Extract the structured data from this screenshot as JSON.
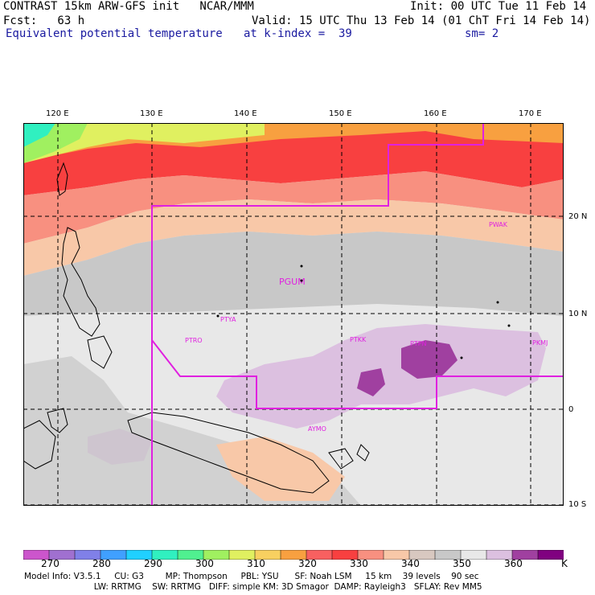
{
  "header": {
    "line1_left": "CONTRAST 15km ARW-GFS init   NCAR/MMM",
    "line1_right": "Init: 00 UTC Tue 11 Feb 14",
    "line2_left": "Fcst:   63 h",
    "line2_right": "Valid: 15 UTC Thu 13 Feb 14 (01 ChT Fri 14 Feb 14)",
    "field_name": "Equivalent potential temperature",
    "level_text": "at k-index =  39",
    "smooth_text": "sm= 2"
  },
  "map": {
    "lon_labels": [
      "120 E",
      "130 E",
      "140 E",
      "150 E",
      "160 E",
      "170 E"
    ],
    "lat_labels": [
      "20 N",
      "10 N",
      "0",
      "10 S"
    ],
    "stations": [
      "PGUM",
      "PTYA",
      "PTRO",
      "PTKK",
      "PTPN",
      "PKMJ",
      "PWAK",
      "AYMO"
    ]
  },
  "colorbar": {
    "colors": [
      "#cc55cc",
      "#a070d0",
      "#8080e8",
      "#40a0ff",
      "#20d0ff",
      "#30f0c0",
      "#50f090",
      "#a0f060",
      "#e0f060",
      "#f8d060",
      "#f8a040",
      "#f86060",
      "#f84040",
      "#f89080",
      "#f8c8a8",
      "#d8c8c0",
      "#c8c8c8",
      "#e8e8e8",
      "#dcc0e0",
      "#a040a0",
      "#800080"
    ],
    "labels": [
      "270",
      "280",
      "290",
      "300",
      "310",
      "320",
      "330",
      "340",
      "350",
      "360"
    ],
    "unit": "K"
  },
  "footer": {
    "line1": "Model Info: V3.5.1     CU: G3        MP: Thompson     PBL: YSU      SF: Noah LSM     15 km    39 levels    90 sec",
    "line2": "                          LW: RRTMG    SW: RRTMG   DIFF: simple KM: 3D Smagor  DAMP: Rayleigh3   SFLAY: Rev MM5"
  }
}
